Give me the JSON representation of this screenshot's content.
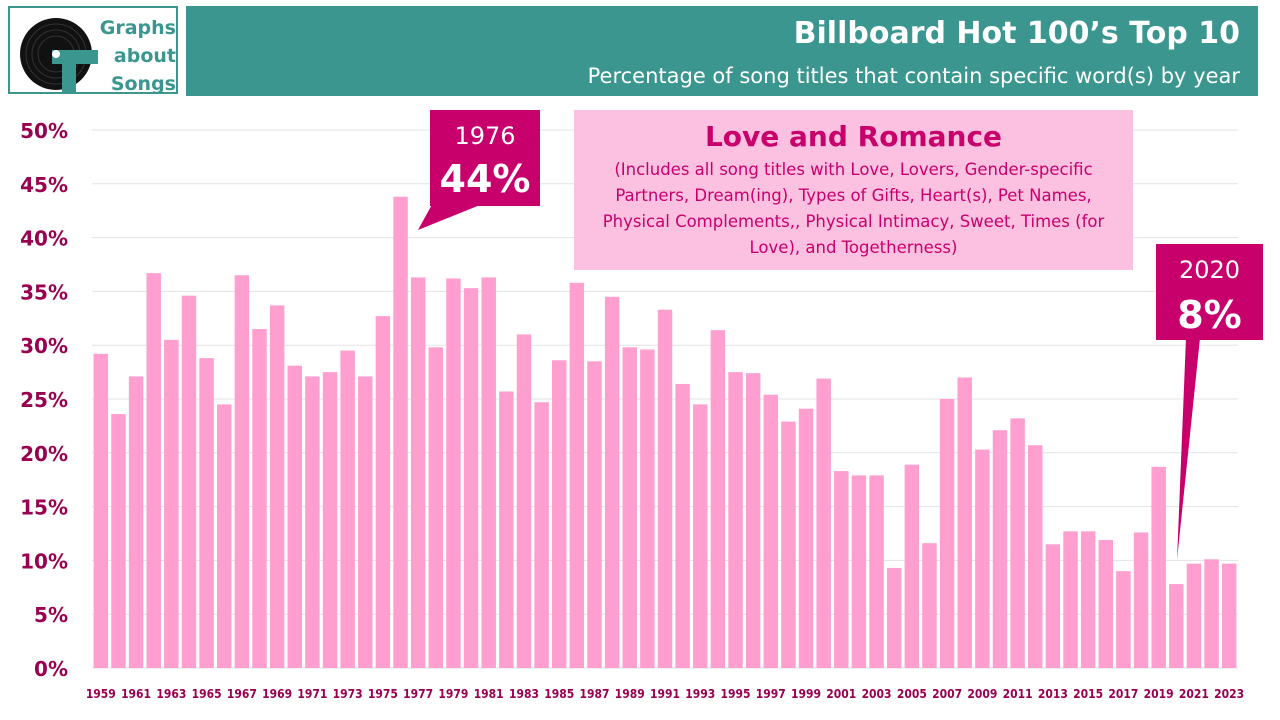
{
  "logo": {
    "lines": [
      "Graphs",
      "about",
      "Songs"
    ]
  },
  "header": {
    "title": "Billboard Hot 100’s Top 10",
    "subtitle": "Percentage of song titles that contain specific word(s) by year"
  },
  "info_box": {
    "title": "Love and Romance",
    "description": "(Includes all song titles with Love, Lovers, Gender-specific Partners, Dream(ing), Types of Gifts, Heart(s), Pet Names, Physical Complements,, Physical Intimacy, Sweet, Times (for Love), and Togetherness)"
  },
  "callouts": [
    {
      "year": "1976",
      "value": "44%"
    },
    {
      "year": "2020",
      "value": "8%"
    }
  ],
  "colors": {
    "bar": "#ff9fd0",
    "accent": "#c8006c",
    "teal": "#3a968f",
    "box_fill": "#fcc0e0",
    "tick_label": "#99004f"
  },
  "chart_data": {
    "type": "bar",
    "title": "Love and Romance",
    "ylabel": "",
    "xlabel": "",
    "ylim": [
      0,
      50
    ],
    "yticks": [
      "0%",
      "5%",
      "10%",
      "15%",
      "20%",
      "25%",
      "30%",
      "35%",
      "40%",
      "45%",
      "50%"
    ],
    "grid": true,
    "categories": [
      "1959",
      "1960",
      "1961",
      "1962",
      "1963",
      "1964",
      "1965",
      "1966",
      "1967",
      "1968",
      "1969",
      "1970",
      "1971",
      "1972",
      "1973",
      "1974",
      "1975",
      "1976",
      "1977",
      "1978",
      "1979",
      "1980",
      "1981",
      "1982",
      "1983",
      "1984",
      "1985",
      "1986",
      "1987",
      "1988",
      "1989",
      "1990",
      "1991",
      "1992",
      "1993",
      "1994",
      "1995",
      "1996",
      "1997",
      "1998",
      "1999",
      "2000",
      "2001",
      "2002",
      "2003",
      "2004",
      "2005",
      "2006",
      "2007",
      "2008",
      "2009",
      "2010",
      "2011",
      "2012",
      "2013",
      "2014",
      "2015",
      "2016",
      "2017",
      "2018",
      "2019",
      "2020",
      "2021",
      "2022",
      "2023"
    ],
    "xtick_labels": [
      "1959",
      "1961",
      "1963",
      "1965",
      "1967",
      "1969",
      "1971",
      "1973",
      "1975",
      "1977",
      "1979",
      "1981",
      "1983",
      "1985",
      "1987",
      "1989",
      "1991",
      "1993",
      "1995",
      "1997",
      "1999",
      "2001",
      "2003",
      "2005",
      "2007",
      "2009",
      "2011",
      "2013",
      "2015",
      "2017",
      "2019",
      "2021",
      "2023"
    ],
    "values": [
      29.2,
      23.6,
      27.1,
      36.7,
      30.5,
      34.6,
      28.8,
      24.5,
      36.5,
      31.5,
      33.7,
      28.1,
      27.1,
      27.5,
      29.5,
      27.1,
      32.7,
      43.8,
      36.3,
      29.8,
      36.2,
      35.3,
      36.3,
      25.7,
      31.0,
      24.7,
      28.6,
      35.8,
      28.5,
      34.5,
      29.8,
      29.6,
      33.3,
      26.4,
      24.5,
      31.4,
      27.5,
      27.4,
      25.4,
      22.9,
      24.1,
      26.9,
      18.3,
      17.9,
      17.9,
      9.3,
      18.9,
      11.6,
      25.0,
      27.0,
      20.3,
      22.1,
      23.2,
      20.7,
      11.5,
      12.7,
      12.7,
      11.9,
      9.0,
      12.6,
      18.7,
      7.8,
      9.7,
      10.1,
      9.7
    ]
  }
}
